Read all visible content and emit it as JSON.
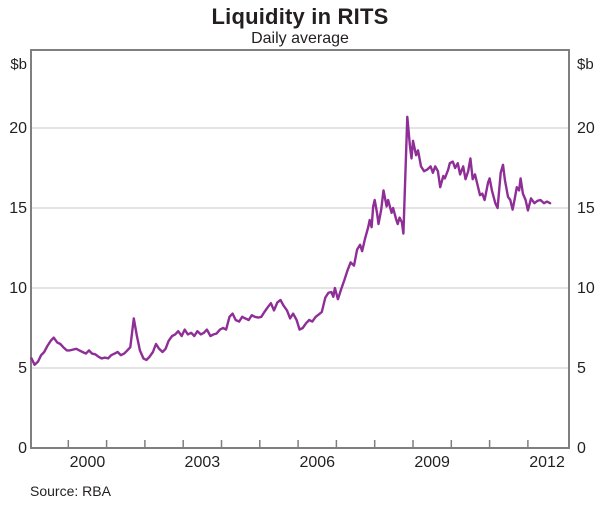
{
  "chart_data": {
    "type": "line",
    "title": "Liquidity in RITS",
    "subtitle": "Daily average",
    "unit_label": "$b",
    "source": "Source: RBA",
    "ylim": [
      0,
      24.875
    ],
    "xlim": [
      1999.03,
      2013.0
    ],
    "grid": true,
    "y_axis": {
      "tick_values": [
        0,
        5,
        10,
        15,
        20
      ],
      "tick_labels": [
        "0",
        "5",
        "10",
        "15",
        "20"
      ],
      "grid_values": [
        5,
        10,
        15,
        20
      ]
    },
    "x_axis": {
      "tick_years": [
        2000,
        2001,
        2002,
        2003,
        2004,
        2005,
        2006,
        2007,
        2008,
        2009,
        2010,
        2011,
        2012
      ],
      "labels": [
        {
          "text": "2000",
          "center_year": 2000.5
        },
        {
          "text": "2003",
          "center_year": 2003.5
        },
        {
          "text": "2006",
          "center_year": 2006.5
        },
        {
          "text": "2009",
          "center_year": 2009.5
        },
        {
          "text": "2012",
          "center_year": 2012.5
        }
      ]
    },
    "series": [
      {
        "name": "RITS liquidity (daily average, $b)",
        "points": [
          [
            1999.04,
            5.6
          ],
          [
            1999.12,
            5.2
          ],
          [
            1999.21,
            5.4
          ],
          [
            1999.29,
            5.8
          ],
          [
            1999.37,
            6.0
          ],
          [
            1999.46,
            6.4
          ],
          [
            1999.54,
            6.7
          ],
          [
            1999.62,
            6.9
          ],
          [
            1999.71,
            6.6
          ],
          [
            1999.79,
            6.5
          ],
          [
            1999.87,
            6.3
          ],
          [
            1999.96,
            6.1
          ],
          [
            2000.04,
            6.1
          ],
          [
            2000.12,
            6.15
          ],
          [
            2000.21,
            6.2
          ],
          [
            2000.29,
            6.1
          ],
          [
            2000.37,
            6.0
          ],
          [
            2000.46,
            5.9
          ],
          [
            2000.54,
            6.1
          ],
          [
            2000.62,
            5.9
          ],
          [
            2000.71,
            5.85
          ],
          [
            2000.79,
            5.7
          ],
          [
            2000.87,
            5.6
          ],
          [
            2000.96,
            5.65
          ],
          [
            2001.04,
            5.6
          ],
          [
            2001.12,
            5.8
          ],
          [
            2001.21,
            5.9
          ],
          [
            2001.29,
            6.0
          ],
          [
            2001.37,
            5.8
          ],
          [
            2001.46,
            5.9
          ],
          [
            2001.54,
            6.1
          ],
          [
            2001.62,
            6.3
          ],
          [
            2001.71,
            8.1
          ],
          [
            2001.79,
            7.0
          ],
          [
            2001.87,
            6.1
          ],
          [
            2001.96,
            5.6
          ],
          [
            2002.04,
            5.5
          ],
          [
            2002.12,
            5.7
          ],
          [
            2002.21,
            6.0
          ],
          [
            2002.29,
            6.5
          ],
          [
            2002.37,
            6.2
          ],
          [
            2002.46,
            6.0
          ],
          [
            2002.54,
            6.2
          ],
          [
            2002.62,
            6.7
          ],
          [
            2002.71,
            7.0
          ],
          [
            2002.79,
            7.1
          ],
          [
            2002.87,
            7.3
          ],
          [
            2002.96,
            7.0
          ],
          [
            2003.04,
            7.4
          ],
          [
            2003.12,
            7.1
          ],
          [
            2003.21,
            7.2
          ],
          [
            2003.29,
            7.0
          ],
          [
            2003.37,
            7.3
          ],
          [
            2003.46,
            7.1
          ],
          [
            2003.54,
            7.2
          ],
          [
            2003.62,
            7.4
          ],
          [
            2003.71,
            7.0
          ],
          [
            2003.79,
            7.1
          ],
          [
            2003.87,
            7.15
          ],
          [
            2003.96,
            7.4
          ],
          [
            2004.04,
            7.5
          ],
          [
            2004.12,
            7.4
          ],
          [
            2004.21,
            8.2
          ],
          [
            2004.29,
            8.4
          ],
          [
            2004.37,
            8.0
          ],
          [
            2004.46,
            7.9
          ],
          [
            2004.54,
            8.2
          ],
          [
            2004.62,
            8.1
          ],
          [
            2004.71,
            8.0
          ],
          [
            2004.79,
            8.3
          ],
          [
            2004.87,
            8.2
          ],
          [
            2004.96,
            8.15
          ],
          [
            2005.04,
            8.2
          ],
          [
            2005.12,
            8.5
          ],
          [
            2005.21,
            8.8
          ],
          [
            2005.29,
            9.05
          ],
          [
            2005.37,
            8.6
          ],
          [
            2005.46,
            9.1
          ],
          [
            2005.54,
            9.25
          ],
          [
            2005.62,
            8.9
          ],
          [
            2005.71,
            8.6
          ],
          [
            2005.79,
            8.1
          ],
          [
            2005.87,
            8.4
          ],
          [
            2005.96,
            8.0
          ],
          [
            2006.04,
            7.4
          ],
          [
            2006.12,
            7.5
          ],
          [
            2006.21,
            7.8
          ],
          [
            2006.29,
            8.0
          ],
          [
            2006.37,
            7.9
          ],
          [
            2006.46,
            8.2
          ],
          [
            2006.54,
            8.35
          ],
          [
            2006.62,
            8.5
          ],
          [
            2006.71,
            9.4
          ],
          [
            2006.79,
            9.7
          ],
          [
            2006.87,
            9.75
          ],
          [
            2006.92,
            9.45
          ],
          [
            2006.96,
            10.0
          ],
          [
            2007.04,
            9.3
          ],
          [
            2007.08,
            9.6
          ],
          [
            2007.12,
            9.9
          ],
          [
            2007.21,
            10.5
          ],
          [
            2007.29,
            11.1
          ],
          [
            2007.37,
            11.6
          ],
          [
            2007.46,
            11.4
          ],
          [
            2007.54,
            12.4
          ],
          [
            2007.62,
            12.7
          ],
          [
            2007.67,
            12.3
          ],
          [
            2007.75,
            13.1
          ],
          [
            2007.83,
            13.8
          ],
          [
            2007.87,
            14.25
          ],
          [
            2007.92,
            13.8
          ],
          [
            2007.96,
            15.1
          ],
          [
            2008.0,
            15.5
          ],
          [
            2008.06,
            14.7
          ],
          [
            2008.1,
            14.0
          ],
          [
            2008.17,
            14.9
          ],
          [
            2008.23,
            16.1
          ],
          [
            2008.31,
            15.1
          ],
          [
            2008.35,
            15.5
          ],
          [
            2008.44,
            14.7
          ],
          [
            2008.48,
            15.0
          ],
          [
            2008.56,
            14.3
          ],
          [
            2008.6,
            14.0
          ],
          [
            2008.65,
            14.4
          ],
          [
            2008.71,
            14.1
          ],
          [
            2008.75,
            13.4
          ],
          [
            2008.85,
            20.7
          ],
          [
            2008.92,
            18.9
          ],
          [
            2008.96,
            18.1
          ],
          [
            2009.0,
            19.2
          ],
          [
            2009.08,
            18.3
          ],
          [
            2009.13,
            18.6
          ],
          [
            2009.21,
            17.6
          ],
          [
            2009.29,
            17.3
          ],
          [
            2009.37,
            17.4
          ],
          [
            2009.46,
            17.6
          ],
          [
            2009.52,
            17.2
          ],
          [
            2009.58,
            17.6
          ],
          [
            2009.65,
            17.3
          ],
          [
            2009.71,
            16.3
          ],
          [
            2009.79,
            17.0
          ],
          [
            2009.83,
            16.85
          ],
          [
            2009.92,
            17.4
          ],
          [
            2009.96,
            17.8
          ],
          [
            2010.04,
            17.9
          ],
          [
            2010.1,
            17.5
          ],
          [
            2010.17,
            17.8
          ],
          [
            2010.23,
            17.1
          ],
          [
            2010.31,
            17.6
          ],
          [
            2010.37,
            16.8
          ],
          [
            2010.44,
            17.3
          ],
          [
            2010.5,
            18.1
          ],
          [
            2010.56,
            16.8
          ],
          [
            2010.62,
            17.1
          ],
          [
            2010.69,
            16.4
          ],
          [
            2010.75,
            15.8
          ],
          [
            2010.81,
            15.9
          ],
          [
            2010.87,
            15.5
          ],
          [
            2010.96,
            16.6
          ],
          [
            2011.0,
            16.85
          ],
          [
            2011.06,
            16.1
          ],
          [
            2011.15,
            15.3
          ],
          [
            2011.21,
            15.0
          ],
          [
            2011.29,
            17.2
          ],
          [
            2011.35,
            17.7
          ],
          [
            2011.4,
            16.75
          ],
          [
            2011.48,
            15.7
          ],
          [
            2011.54,
            15.5
          ],
          [
            2011.6,
            14.9
          ],
          [
            2011.65,
            15.5
          ],
          [
            2011.71,
            16.3
          ],
          [
            2011.77,
            16.1
          ],
          [
            2011.81,
            16.85
          ],
          [
            2011.87,
            15.9
          ],
          [
            2011.94,
            15.5
          ],
          [
            2012.0,
            14.85
          ],
          [
            2012.08,
            15.6
          ],
          [
            2012.17,
            15.3
          ],
          [
            2012.25,
            15.45
          ],
          [
            2012.33,
            15.5
          ],
          [
            2012.42,
            15.3
          ],
          [
            2012.5,
            15.4
          ],
          [
            2012.58,
            15.3
          ]
        ]
      }
    ],
    "colors": {
      "line": "#8E2E96",
      "grid": "#c8c8c8",
      "frame": "#7f7f7f",
      "text": "#231f20"
    }
  }
}
